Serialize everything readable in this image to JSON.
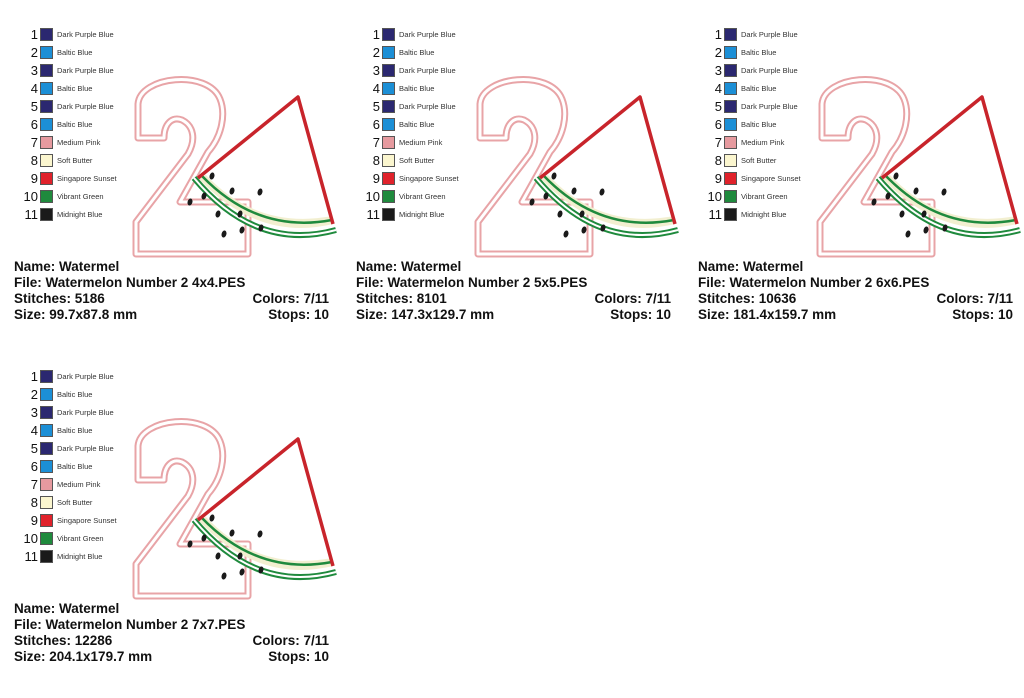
{
  "palette": [
    {
      "num": "1",
      "name": "Dark Purple Blue",
      "color": "#2b2870"
    },
    {
      "num": "2",
      "name": "Baltic Blue",
      "color": "#1c8fd6"
    },
    {
      "num": "3",
      "name": "Dark Purple Blue",
      "color": "#2b2870"
    },
    {
      "num": "4",
      "name": "Baltic Blue",
      "color": "#1c8fd6"
    },
    {
      "num": "5",
      "name": "Dark Purple Blue",
      "color": "#2b2870"
    },
    {
      "num": "6",
      "name": "Baltic Blue",
      "color": "#1c8fd6"
    },
    {
      "num": "7",
      "name": "Medium Pink",
      "color": "#e69a9f"
    },
    {
      "num": "8",
      "name": "Soft Butter",
      "color": "#fbf6cf"
    },
    {
      "num": "9",
      "name": "Singapore Sunset",
      "color": "#e0222b"
    },
    {
      "num": "10",
      "name": "Vibrant Green",
      "color": "#1f8a3d"
    },
    {
      "num": "11",
      "name": "Midnight Blue",
      "color": "#1a1a1a"
    }
  ],
  "cards": [
    {
      "name": "Name: Watermel",
      "file": "File: Watermelon Number 2 4x4.PES",
      "stitches": "Stitches: 5186",
      "colors": "Colors: 7/11",
      "size": "Size: 99.7x87.8 mm",
      "stops": "Stops: 10"
    },
    {
      "name": "Name: Watermel",
      "file": "File: Watermelon Number 2 5x5.PES",
      "stitches": "Stitches: 8101",
      "colors": "Colors: 7/11",
      "size": "Size: 147.3x129.7 mm",
      "stops": "Stops: 10"
    },
    {
      "name": "Name: Watermel",
      "file": "File: Watermelon Number 2 6x6.PES",
      "stitches": "Stitches: 10636",
      "colors": "Colors: 7/11",
      "size": "Size: 181.4x159.7 mm",
      "stops": "Stops: 10"
    },
    {
      "name": "Name: Watermel",
      "file": "File: Watermelon Number 2 7x7.PES",
      "stitches": "Stitches: 12286",
      "colors": "Colors: 7/11",
      "size": "Size: 204.1x179.7 mm",
      "stops": "Stops: 10"
    }
  ],
  "design_colors": {
    "digit_outline": "#e8a4a7",
    "rind_green": "#1f8a3d",
    "rind_light": "#f2efd0",
    "flesh_outline": "#c8242b",
    "seeds": "#1a1a1a"
  }
}
